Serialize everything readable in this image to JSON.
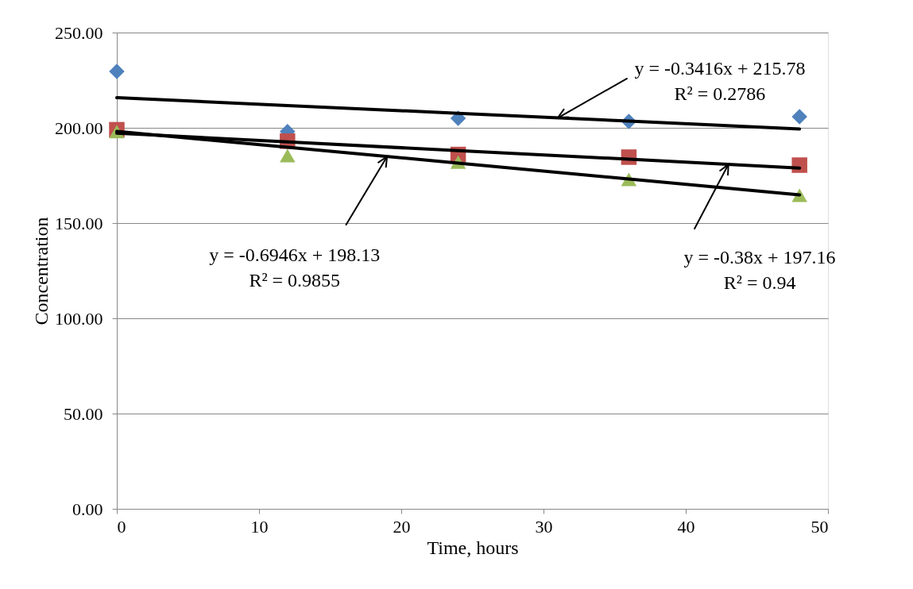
{
  "chart_data": {
    "type": "scatter",
    "xlabel": "Time, hours",
    "ylabel": "Concentration",
    "x": [
      0,
      12,
      24,
      36,
      48
    ],
    "series": [
      {
        "color": "#4f81bd",
        "marker": "diamond",
        "values": [
          229.6,
          198,
          205,
          203.3,
          205.8
        ]
      },
      {
        "color": "#c0504d",
        "marker": "square",
        "values": [
          199,
          193,
          186,
          184.6,
          180.4
        ]
      },
      {
        "color": "#9bbb59",
        "marker": "triangle",
        "values": [
          198,
          185.4,
          182,
          172.9,
          164.6
        ]
      },
      {
        "type": "line",
        "color": "#000000",
        "line_style": "solid",
        "values": [
          215.8,
          211.7,
          207.6,
          203.5,
          199.4
        ]
      },
      {
        "type": "line",
        "color": "#000000",
        "line_style": "solid",
        "values": [
          197.2,
          192.6,
          188.0,
          183.5,
          178.9
        ]
      },
      {
        "type": "line",
        "color": "#000000",
        "line_style": "solid",
        "values": [
          198.1,
          189.8,
          181.5,
          173.1,
          164.8
        ]
      }
    ],
    "xlim": [
      0,
      50
    ],
    "xticks": [
      0,
      10,
      20,
      30,
      40,
      50
    ],
    "ylim": [
      0,
      250
    ],
    "yticks": [
      {
        "value": 0,
        "label": "0.00"
      },
      {
        "value": 50,
        "label": "50.00"
      },
      {
        "value": 100,
        "label": "100.00"
      },
      {
        "value": 150,
        "label": "150.00"
      },
      {
        "value": 200,
        "label": "200.00"
      },
      {
        "value": 250,
        "label": "250.00"
      }
    ],
    "grid": "y",
    "annotations": [
      {
        "text": "y = -0.3416x + 215.78\nR² = 0.2786",
        "x": 31,
        "y": 205.2
      },
      {
        "text": "y = -0.6946x + 198.13\nR² = 0.9855",
        "x": 19,
        "y": 184.9
      },
      {
        "text": "y = -0.38x + 197.16\nR² = 0.94",
        "x": 43,
        "y": 180.8
      }
    ]
  }
}
